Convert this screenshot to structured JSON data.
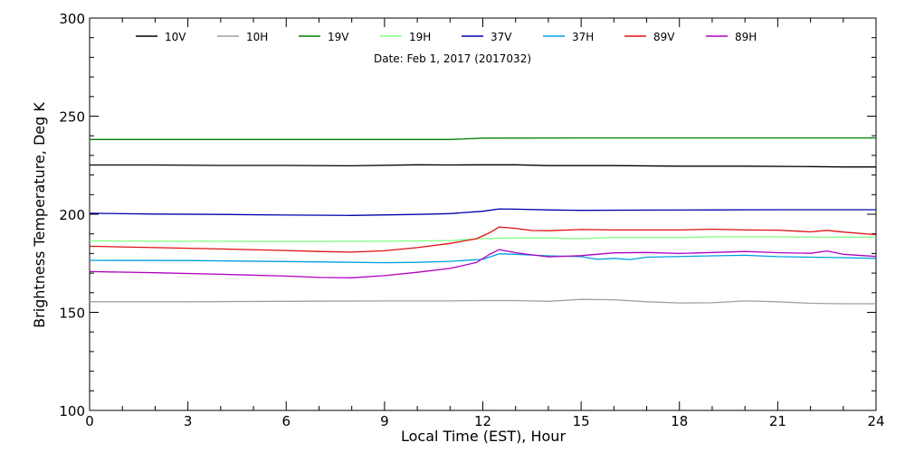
{
  "chart_data": {
    "type": "line",
    "title": "",
    "annotation": "Date: Feb  1, 2017 (2017032)",
    "xlabel": "Local Time (EST), Hour",
    "ylabel": "Brightness Temperature, Deg K",
    "xlim": [
      0,
      24
    ],
    "ylim": [
      100,
      300
    ],
    "xticks": [
      0,
      3,
      6,
      9,
      12,
      15,
      18,
      21,
      24
    ],
    "xtick_labels": [
      "0",
      "3",
      "6",
      "9",
      "12",
      "15",
      "18",
      "21",
      "24"
    ],
    "yticks": [
      100,
      150,
      200,
      250,
      300
    ],
    "ytick_labels": [
      "100",
      "150",
      "200",
      "250",
      "300"
    ],
    "grid": false,
    "legend": "top, single row",
    "series": [
      {
        "name": "10V",
        "color": "#000000",
        "points": [
          [
            0,
            225.1
          ],
          [
            2,
            225.1
          ],
          [
            4,
            224.9
          ],
          [
            6,
            224.9
          ],
          [
            8,
            224.7
          ],
          [
            10,
            225.2
          ],
          [
            11,
            225.1
          ],
          [
            12,
            225.2
          ],
          [
            13,
            225.2
          ],
          [
            14,
            224.8
          ],
          [
            15,
            224.8
          ],
          [
            16,
            224.8
          ],
          [
            18,
            224.5
          ],
          [
            20,
            224.5
          ],
          [
            22,
            224.3
          ],
          [
            23,
            224.1
          ],
          [
            24,
            224.1
          ]
        ]
      },
      {
        "name": "10H",
        "color": "#a0a0a0",
        "points": [
          [
            0,
            155.4
          ],
          [
            3,
            155.4
          ],
          [
            6,
            155.6
          ],
          [
            9,
            155.8
          ],
          [
            11,
            155.8
          ],
          [
            12,
            156
          ],
          [
            13,
            156
          ],
          [
            14,
            155.6
          ],
          [
            15,
            156.6
          ],
          [
            16,
            156.4
          ],
          [
            17,
            155.4
          ],
          [
            18,
            154.8
          ],
          [
            19,
            154.9
          ],
          [
            20,
            155.8
          ],
          [
            21,
            155.4
          ],
          [
            22,
            154.6
          ],
          [
            23,
            154.4
          ],
          [
            24,
            154.4
          ]
        ]
      },
      {
        "name": "19V",
        "color": "#008000",
        "points": [
          [
            0,
            238.1
          ],
          [
            3,
            238.1
          ],
          [
            6,
            238.1
          ],
          [
            9,
            238.1
          ],
          [
            11,
            238.1
          ],
          [
            12,
            238.8
          ],
          [
            15,
            238.9
          ],
          [
            18,
            238.9
          ],
          [
            21,
            238.9
          ],
          [
            24,
            238.9
          ]
        ]
      },
      {
        "name": "19H",
        "color": "#80ff80",
        "points": [
          [
            0,
            186.4
          ],
          [
            3,
            186.2
          ],
          [
            6,
            186.1
          ],
          [
            9,
            186.2
          ],
          [
            11,
            186.6
          ],
          [
            12,
            187.6
          ],
          [
            13,
            187.9
          ],
          [
            14,
            187.9
          ],
          [
            15,
            187.6
          ],
          [
            16,
            188.2
          ],
          [
            18,
            188.1
          ],
          [
            19,
            188.5
          ],
          [
            21,
            188.5
          ],
          [
            22,
            188.3
          ],
          [
            24,
            188.3
          ]
        ]
      },
      {
        "name": "37V",
        "color": "#0000aa",
        "points": [
          [
            0,
            200.5
          ],
          [
            2,
            200.1
          ],
          [
            4,
            199.9
          ],
          [
            6,
            199.6
          ],
          [
            8,
            199.4
          ],
          [
            10,
            199.9
          ],
          [
            11,
            200.3
          ],
          [
            12,
            201.5
          ],
          [
            12.5,
            202.7
          ],
          [
            13,
            202.6
          ],
          [
            14,
            202.2
          ],
          [
            15,
            202
          ],
          [
            17,
            202.1
          ],
          [
            19,
            202.2
          ],
          [
            21,
            202.3
          ],
          [
            23,
            202.3
          ],
          [
            24,
            202.3
          ]
        ]
      },
      {
        "name": "37H",
        "color": "#00a0e0",
        "points": [
          [
            0,
            176.5
          ],
          [
            3,
            176.4
          ],
          [
            6,
            175.9
          ],
          [
            9,
            175.3
          ],
          [
            10,
            175.5
          ],
          [
            11,
            176
          ],
          [
            12,
            177
          ],
          [
            12.5,
            179.8
          ],
          [
            13,
            179.6
          ],
          [
            14,
            178.8
          ],
          [
            15,
            178.4
          ],
          [
            15.5,
            177
          ],
          [
            16,
            177.5
          ],
          [
            16.5,
            176.9
          ],
          [
            17,
            178.1
          ],
          [
            19,
            178.8
          ],
          [
            20,
            179.1
          ],
          [
            21,
            178.4
          ],
          [
            22,
            178.1
          ],
          [
            23,
            177.9
          ],
          [
            24,
            177.5
          ]
        ]
      },
      {
        "name": "89V",
        "color": "#e01010",
        "points": [
          [
            0,
            183.7
          ],
          [
            2,
            183
          ],
          [
            4,
            182.3
          ],
          [
            6,
            181.5
          ],
          [
            7,
            181
          ],
          [
            8,
            180.7
          ],
          [
            9,
            181.4
          ],
          [
            10,
            183
          ],
          [
            11,
            185.1
          ],
          [
            11.8,
            187.5
          ],
          [
            12.2,
            190.5
          ],
          [
            12.5,
            193.5
          ],
          [
            13,
            192.8
          ],
          [
            13.5,
            191.7
          ],
          [
            14,
            191.6
          ],
          [
            15,
            192.2
          ],
          [
            16,
            192
          ],
          [
            18,
            192
          ],
          [
            19,
            192.4
          ],
          [
            20,
            192
          ],
          [
            21,
            191.9
          ],
          [
            22,
            191
          ],
          [
            22.5,
            191.8
          ],
          [
            23,
            190.9
          ],
          [
            24,
            189.6
          ]
        ]
      },
      {
        "name": "89H",
        "color": "#b000c0",
        "points": [
          [
            0,
            170.8
          ],
          [
            2,
            170.2
          ],
          [
            4,
            169.4
          ],
          [
            6,
            168.5
          ],
          [
            7,
            167.8
          ],
          [
            8,
            167.6
          ],
          [
            9,
            168.7
          ],
          [
            10,
            170.4
          ],
          [
            11,
            172.4
          ],
          [
            11.8,
            175.4
          ],
          [
            12.2,
            179.5
          ],
          [
            12.5,
            182
          ],
          [
            13,
            180.4
          ],
          [
            13.5,
            179.3
          ],
          [
            14,
            178.3
          ],
          [
            15,
            178.9
          ],
          [
            16,
            180.3
          ],
          [
            17,
            180.5
          ],
          [
            18,
            180
          ],
          [
            19,
            180.5
          ],
          [
            20,
            181
          ],
          [
            21,
            180.4
          ],
          [
            22,
            180.1
          ],
          [
            22.5,
            181.3
          ],
          [
            23,
            179.6
          ],
          [
            24,
            178.5
          ]
        ]
      }
    ]
  }
}
